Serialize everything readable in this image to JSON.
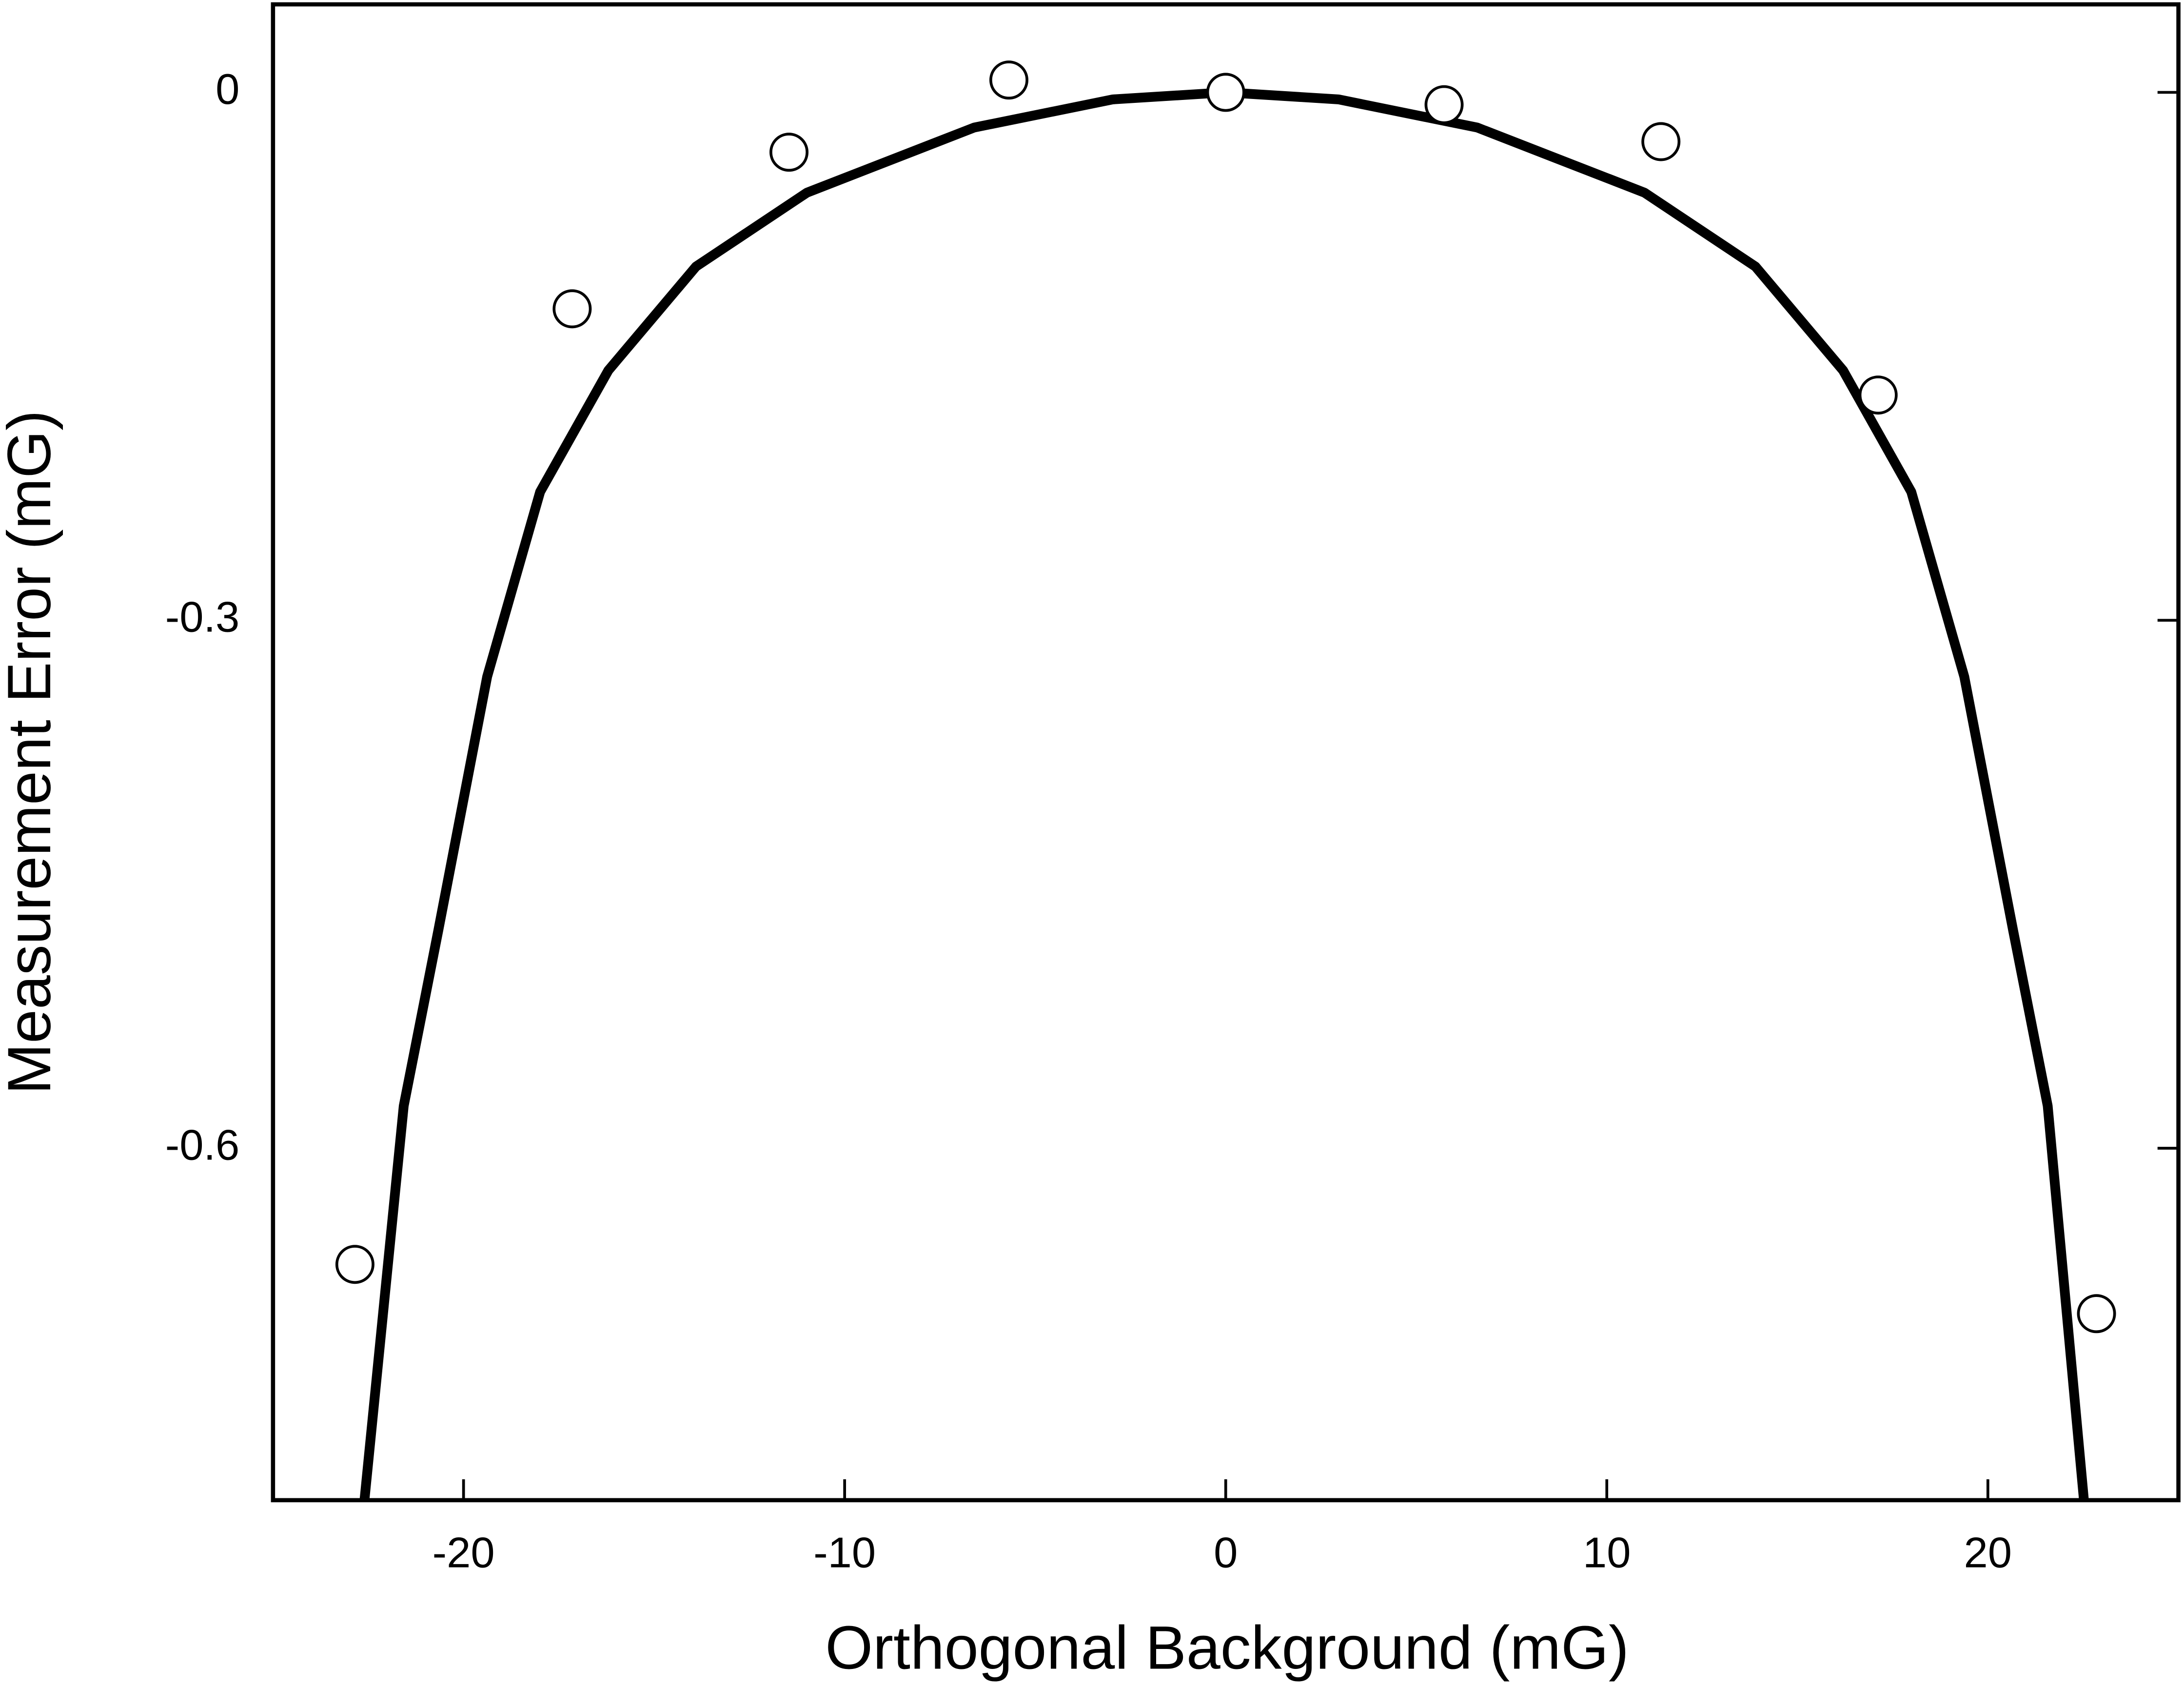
{
  "chart_data": {
    "type": "scatter",
    "x_label": "Orthogonal Background (mG)",
    "y_label": "Measurement Error (mG)",
    "xlim": [
      -25,
      25
    ],
    "ylim": [
      -0.8,
      0.05
    ],
    "xticks": [
      -20,
      -10,
      0,
      10,
      20
    ],
    "yticks": [
      0,
      -0.3,
      -0.6
    ],
    "series": [
      {
        "style": "markers",
        "color": "#000000",
        "x": [
          -22.85,
          -17.15,
          -11.46,
          -5.69,
          0,
          5.73,
          11.42,
          17.12,
          22.85
        ],
        "values": [
          -0.666,
          -0.123,
          -0.034,
          0.007,
          0,
          -0.007,
          -0.028,
          -0.172,
          -0.694
        ]
      },
      {
        "style": "line",
        "color": "#000000",
        "x": [
          -22.6,
          -21.57,
          -20.66,
          -19.38,
          -17.99,
          -16.2,
          -13.9,
          -10.99,
          -6.6,
          -2.96,
          0,
          2.96,
          6.6,
          10.99,
          13.9,
          16.2,
          17.99,
          19.38,
          20.66,
          21.57,
          22.52
        ],
        "values": [
          -0.8,
          -0.576,
          -0.476,
          -0.332,
          -0.227,
          -0.158,
          -0.099,
          -0.057,
          -0.02,
          -0.004,
          0,
          -0.004,
          -0.02,
          -0.057,
          -0.099,
          -0.158,
          -0.227,
          -0.332,
          -0.476,
          -0.576,
          -0.8
        ]
      }
    ]
  }
}
